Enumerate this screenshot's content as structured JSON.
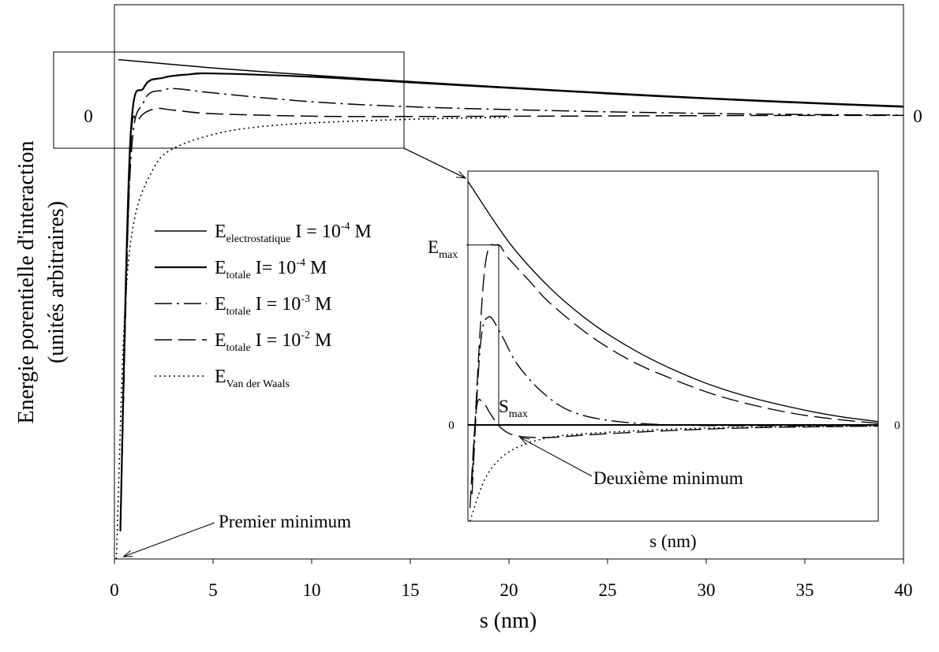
{
  "chart_data": [
    {
      "type": "line",
      "title": "",
      "xlabel": "s (nm)",
      "ylabel_line1": "Energie porentielle d'interaction",
      "ylabel_line2": "(unités arbitraires)",
      "xlim": [
        0,
        40
      ],
      "ylim": [
        -1.6,
        0.4
      ],
      "x_ticks": [
        "0",
        "5",
        "10",
        "15",
        "20",
        "25",
        "30",
        "35",
        "40"
      ],
      "y_tick_zero_left": "0",
      "y_tick_zero_right": "0",
      "grid": false,
      "legend_position": "center-left",
      "legend": [
        {
          "base": "E",
          "sub": "electrostatique",
          "text": " I = 10",
          "sup": "-4",
          "unit": " M",
          "style": "solid"
        },
        {
          "base": "E",
          "sub": "totale",
          "text": " I= 10",
          "sup": "-4",
          "unit": " M",
          "style": "solid-thick"
        },
        {
          "base": "E",
          "sub": "totale",
          "text": " I = 10",
          "sup": "-3",
          "unit": " M",
          "style": "dash-dot"
        },
        {
          "base": "E",
          "sub": "totale",
          "text": " I = 10",
          "sup": "-2",
          "unit": " M",
          "style": "long-dash"
        },
        {
          "base": "E",
          "sub": "Van der Waals",
          "text": "",
          "sup": "",
          "unit": "",
          "style": "dotted"
        }
      ],
      "series": [
        {
          "style": "solid",
          "x": [
            0.2,
            5,
            10,
            15,
            20,
            25,
            30,
            35,
            40
          ],
          "y": [
            0.2,
            0.17,
            0.144,
            0.121,
            0.1,
            0.08,
            0.062,
            0.046,
            0.032
          ]
        },
        {
          "style": "solid-thick",
          "x": [
            0.3,
            0.8,
            1.5,
            2.5,
            3.8,
            5,
            10,
            15,
            20,
            25,
            30,
            35,
            40
          ],
          "y": [
            -1.5,
            -0.1,
            0.1,
            0.135,
            0.147,
            0.15,
            0.138,
            0.118,
            0.098,
            0.078,
            0.06,
            0.044,
            0.03
          ]
        },
        {
          "style": "dash-dot",
          "x": [
            0.3,
            0.8,
            1.5,
            2.5,
            3.2,
            5,
            10,
            15,
            20,
            25,
            30,
            35,
            40
          ],
          "y": [
            -1.5,
            -0.2,
            0.05,
            0.09,
            0.095,
            0.08,
            0.048,
            0.03,
            0.02,
            0.012,
            0.006,
            0.002,
            0.0
          ]
        },
        {
          "style": "long-dash",
          "x": [
            0.3,
            0.8,
            1.2,
            2.0,
            3.0,
            5,
            10,
            15,
            20,
            25,
            30,
            35,
            40
          ],
          "y": [
            -1.5,
            -0.15,
            -0.02,
            0.022,
            0.018,
            0.005,
            -0.004,
            -0.005,
            -0.004,
            -0.003,
            -0.002,
            -0.001,
            -0.001
          ]
        },
        {
          "style": "dotted",
          "x": [
            0.1,
            0.5,
            1,
            2,
            3,
            5,
            7,
            10,
            15,
            20
          ],
          "y": [
            -1.6,
            -0.75,
            -0.38,
            -0.19,
            -0.12,
            -0.07,
            -0.045,
            -0.028,
            -0.015,
            -0.008
          ]
        }
      ],
      "annotations": [
        {
          "text": "Premier minimum",
          "points_to": {
            "x": 0.3,
            "y": -1.6
          }
        }
      ]
    },
    {
      "type": "line",
      "inset": true,
      "xlabel": "s (nm)",
      "y_tick_zero_left": "0",
      "y_tick_zero_right": "0",
      "labels": {
        "emax": {
          "base": "E",
          "sub": "max"
        },
        "smax": {
          "base": "S",
          "sub": "max"
        },
        "deuxieme": "Deuxième minimum"
      },
      "xlim": [
        0,
        10
      ],
      "ylim": [
        -0.35,
        0.88
      ],
      "series": [
        {
          "style": "solid",
          "x": [
            0,
            1,
            2,
            3,
            4,
            5,
            6,
            7,
            8,
            9,
            10
          ],
          "y": [
            0.88,
            0.66,
            0.495,
            0.37,
            0.275,
            0.2,
            0.14,
            0.095,
            0.06,
            0.032,
            0.012
          ]
        },
        {
          "style": "long-dash",
          "x": [
            0.1,
            0.4,
            0.7,
            1.0,
            1.5,
            2,
            3,
            4,
            5,
            6,
            7,
            8,
            9,
            10
          ],
          "y": [
            -0.2,
            0.55,
            0.65,
            0.6,
            0.52,
            0.44,
            0.32,
            0.23,
            0.165,
            0.11,
            0.07,
            0.04,
            0.02,
            0.006
          ]
        },
        {
          "style": "dash-dot",
          "x": [
            0.1,
            0.3,
            0.5,
            0.8,
            1.2,
            1.8,
            2.5,
            3.5,
            5,
            7,
            10
          ],
          "y": [
            -0.25,
            0.28,
            0.39,
            0.33,
            0.22,
            0.12,
            0.05,
            0.015,
            0.0,
            -0.003,
            -0.002
          ]
        },
        {
          "style": "long-dash",
          "x": [
            0.05,
            0.2,
            0.35,
            0.55,
            0.8,
            1.2,
            2,
            3,
            5,
            7,
            10
          ],
          "y": [
            -0.3,
            0.05,
            0.085,
            0.04,
            -0.01,
            -0.04,
            -0.045,
            -0.035,
            -0.02,
            -0.01,
            -0.004
          ]
        },
        {
          "style": "dotted",
          "x": [
            0.05,
            0.4,
            0.8,
            1.3,
            2,
            3,
            5,
            7,
            10
          ],
          "y": [
            -0.36,
            -0.2,
            -0.12,
            -0.075,
            -0.045,
            -0.03,
            -0.015,
            -0.008,
            -0.004
          ]
        }
      ],
      "smax_x": 0.75,
      "emax_y": 0.65,
      "deuxieme_point": {
        "x": 1.2,
        "y": -0.04
      }
    }
  ]
}
